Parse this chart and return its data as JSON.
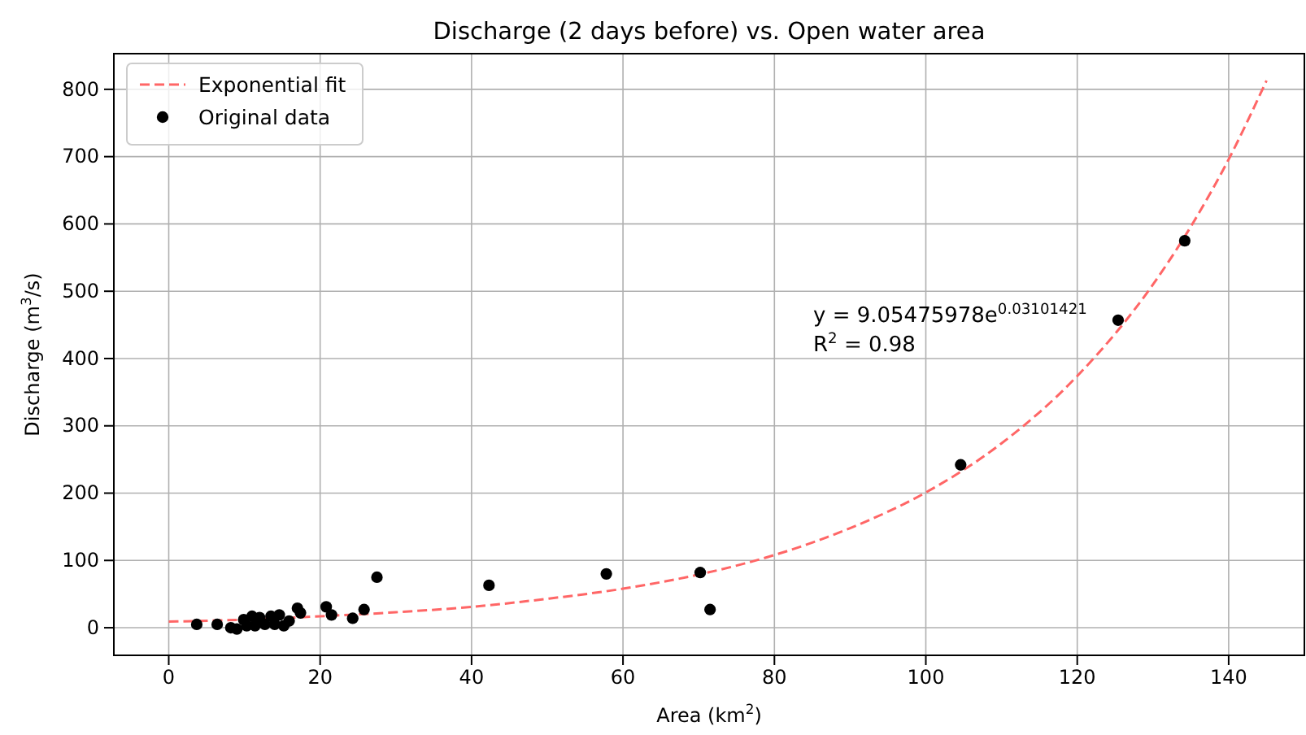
{
  "chart_data": {
    "type": "scatter",
    "title": "Discharge (2 days before) vs. Open water area",
    "xlabel": "Area (km$^{2}$)",
    "ylabel": "Discharge (m$^{3}$/s)",
    "xlim": [
      -7.25,
      150
    ],
    "ylim": [
      -41,
      853
    ],
    "xticks": [
      0,
      20,
      40,
      60,
      80,
      100,
      120,
      140
    ],
    "yticks": [
      0,
      100,
      200,
      300,
      400,
      500,
      600,
      700,
      800
    ],
    "grid": true,
    "legend": "top left",
    "annotations": [
      "y = 9.05475978e$^{0.03101421}$",
      "R$^{2}$ = 0.98"
    ],
    "series": [
      {
        "name": "Exponential fit",
        "type": "line",
        "color": "#ff6666",
        "line_style": "dashed",
        "marker": "none",
        "x": [
          0,
          10,
          20,
          30,
          40,
          50,
          60,
          70,
          80,
          90,
          100,
          110,
          120,
          130,
          135,
          140,
          145
        ],
        "values": [
          9,
          12,
          17,
          23,
          31,
          43,
          58,
          79,
          108,
          148,
          201,
          274,
          374,
          510,
          596,
          696,
          813
        ]
      },
      {
        "name": "Original data",
        "color": "#000000",
        "marker": "circle",
        "x": [
          3.7,
          6.4,
          8.2,
          9.0,
          9.9,
          10.3,
          11.0,
          11.4,
          12.0,
          12.7,
          13.5,
          14.0,
          14.6,
          15.2,
          15.9,
          17.0,
          17.4,
          20.8,
          21.5,
          24.3,
          25.8,
          27.5,
          42.3,
          57.8,
          70.2,
          71.5,
          104.6,
          125.4,
          134.2
        ],
        "values": [
          5,
          5,
          0,
          -2,
          12,
          3,
          17,
          3,
          15,
          5,
          17,
          5,
          19,
          3,
          10,
          29,
          22,
          31,
          19,
          14,
          27,
          75,
          63,
          80,
          82,
          27,
          242,
          457,
          575
        ]
      }
    ]
  }
}
